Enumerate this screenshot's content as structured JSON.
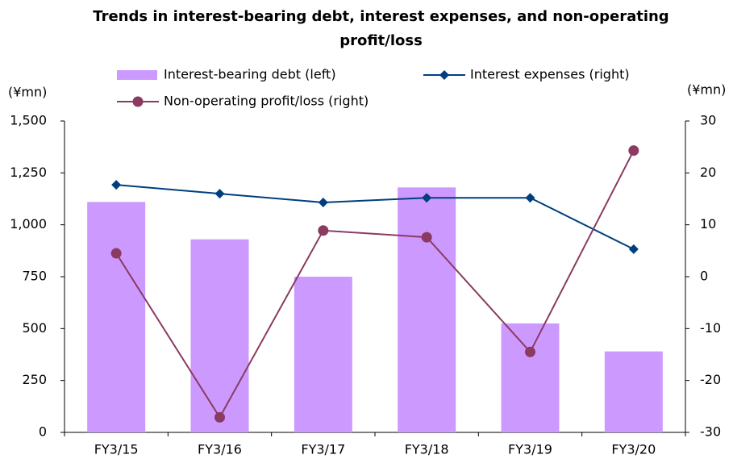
{
  "chart_data": {
    "type": "bar_line",
    "title": "Trends in interest-bearing debt, interest expenses, and non-operating profit/loss",
    "y_unit_label": "(¥mn)",
    "y2_unit_label": "(¥mn)",
    "categories": [
      "FY3/15",
      "FY3/16",
      "FY3/17",
      "FY3/18",
      "FY3/19",
      "FY3/20"
    ],
    "series": [
      {
        "name": "Interest-bearing debt (left)",
        "type": "bar",
        "color": "#cc99ff",
        "values": [
          1110,
          930,
          750,
          1180,
          525,
          390
        ]
      },
      {
        "name": "Interest expenses (right)",
        "type": "line",
        "marker": "diamond",
        "axis": "y2",
        "color": "#003f7f",
        "values": [
          17.7,
          16.0,
          14.3,
          15.2,
          15.2,
          5.3
        ]
      },
      {
        "name": "Non-operating profit/loss (right)",
        "type": "line",
        "marker": "circle",
        "axis": "y2",
        "color": "#8b3a62",
        "values": [
          4.5,
          -27.1,
          8.9,
          7.6,
          -14.5,
          24.3
        ]
      }
    ],
    "ylim": [
      0,
      1500
    ],
    "yticks": [
      0,
      250,
      500,
      750,
      {
        "value": 1000,
        "label": "1,000"
      },
      {
        "value": 1250,
        "label": "1,250"
      },
      {
        "value": 1500,
        "label": "1,500"
      }
    ],
    "y2lim": [
      -30,
      30
    ],
    "y2ticks": [
      -30,
      -20,
      -10,
      0,
      10,
      20,
      30
    ],
    "grid": false
  }
}
